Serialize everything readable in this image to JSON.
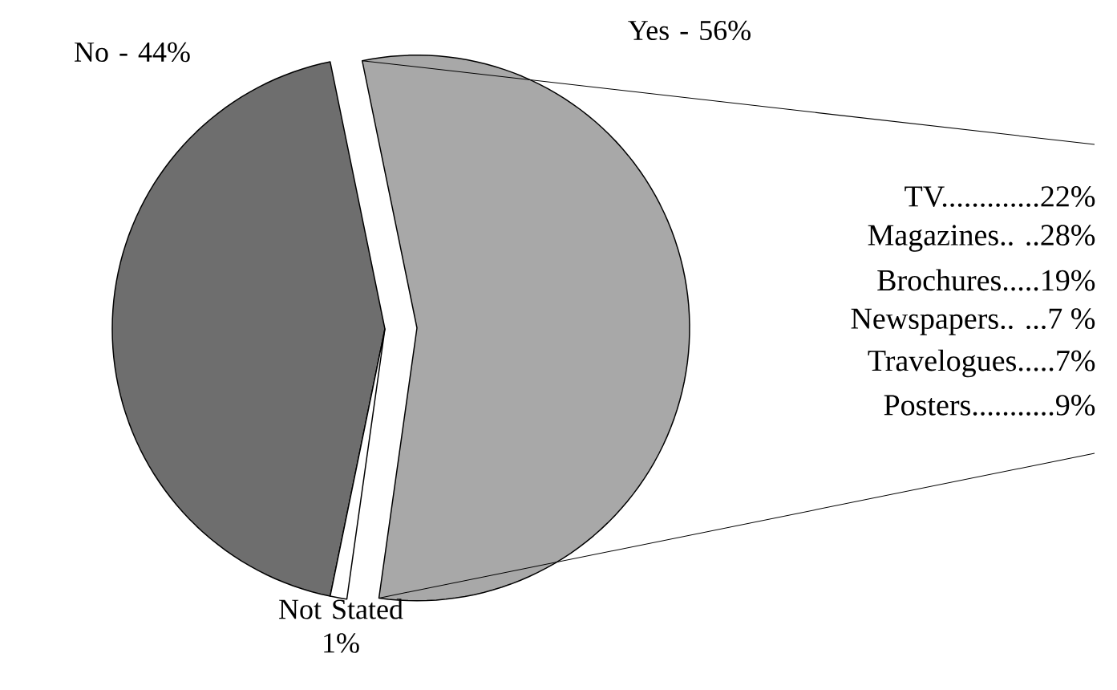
{
  "chart_data": {
    "type": "pie",
    "categories": [
      "No - 44%",
      "Yes - 56%",
      "Not Stated 1%"
    ],
    "values": [
      44,
      56,
      1
    ],
    "colors": [
      "#6e6e6e",
      "#a8a8a8",
      "#ffffff"
    ],
    "annotations": [
      "TV.............22%",
      "Magazines.. ..28%",
      "Brochures.....19%",
      "Newspapers.. ...7 %",
      "Travelogues.....7%",
      "Posters...........9%"
    ]
  }
}
